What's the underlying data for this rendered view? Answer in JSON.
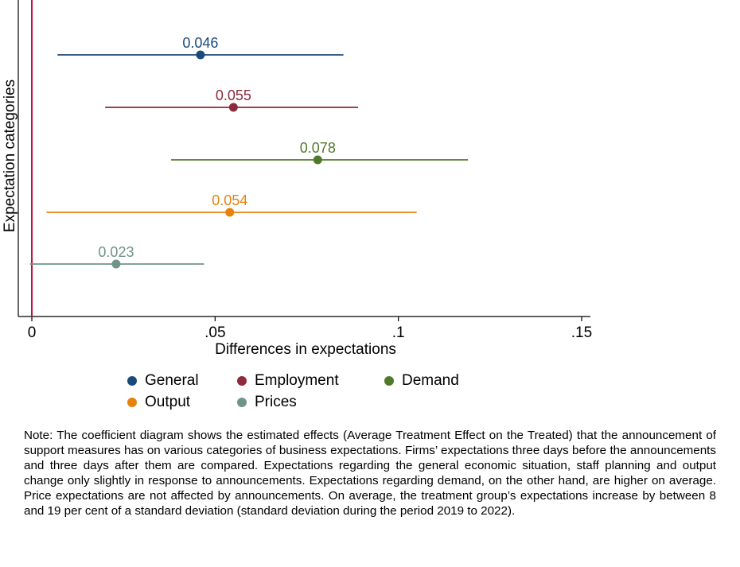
{
  "chart_data": {
    "type": "scatter",
    "title": "",
    "xlabel": "Differences in expectations",
    "ylabel": "Expectation categories",
    "xlim": [
      -0.004,
      0.152
    ],
    "xticks": [
      0,
      0.05,
      0.1,
      0.15
    ],
    "xtick_labels": [
      "0",
      ".05",
      ".1",
      ".15"
    ],
    "reference_line_x": 0,
    "grid": false,
    "legend_position": "bottom",
    "series": [
      {
        "name": "General",
        "value": 0.046,
        "value_label": "0.046",
        "ci": [
          0.007,
          0.085
        ],
        "color": "#1a4a7a"
      },
      {
        "name": "Employment",
        "value": 0.055,
        "value_label": "0.055",
        "ci": [
          0.02,
          0.089
        ],
        "color": "#8e2a3b"
      },
      {
        "name": "Demand",
        "value": 0.078,
        "value_label": "0.078",
        "ci": [
          0.038,
          0.119
        ],
        "color": "#4f7a2b"
      },
      {
        "name": "Output",
        "value": 0.054,
        "value_label": "0.054",
        "ci": [
          0.004,
          0.105
        ],
        "color": "#e8820f"
      },
      {
        "name": "Prices",
        "value": 0.023,
        "value_label": "0.023",
        "ci": [
          -0.0005,
          0.047
        ],
        "color": "#6f9489"
      }
    ]
  },
  "legend": {
    "items": [
      {
        "label": "General",
        "color": "#1a4a7a"
      },
      {
        "label": "Employment",
        "color": "#8e2a3b"
      },
      {
        "label": "Demand",
        "color": "#4f7a2b"
      },
      {
        "label": "Output",
        "color": "#e8820f"
      },
      {
        "label": "Prices",
        "color": "#6f9489"
      }
    ]
  },
  "note": "Note: The coefficient diagram shows the estimated effects (Average Treatment Effect on the Treated) that the announcement of support measures has on various categories of business expectations. Firms’ expectations three days before the announcements and three days after them are compared. Expectations regarding the general economic situation, staff planning and output change only slightly in response to announcements. Expectations regarding demand, on the other hand, are higher on average. Price expectations are not affected by announcements. On average, the treatment group’s expectations increase by between 8 and 19 per cent of a standard deviation (standard deviation during the period 2019 to 2022).",
  "colors": {
    "reference_line": "#c0143c",
    "axis": "#000000"
  }
}
